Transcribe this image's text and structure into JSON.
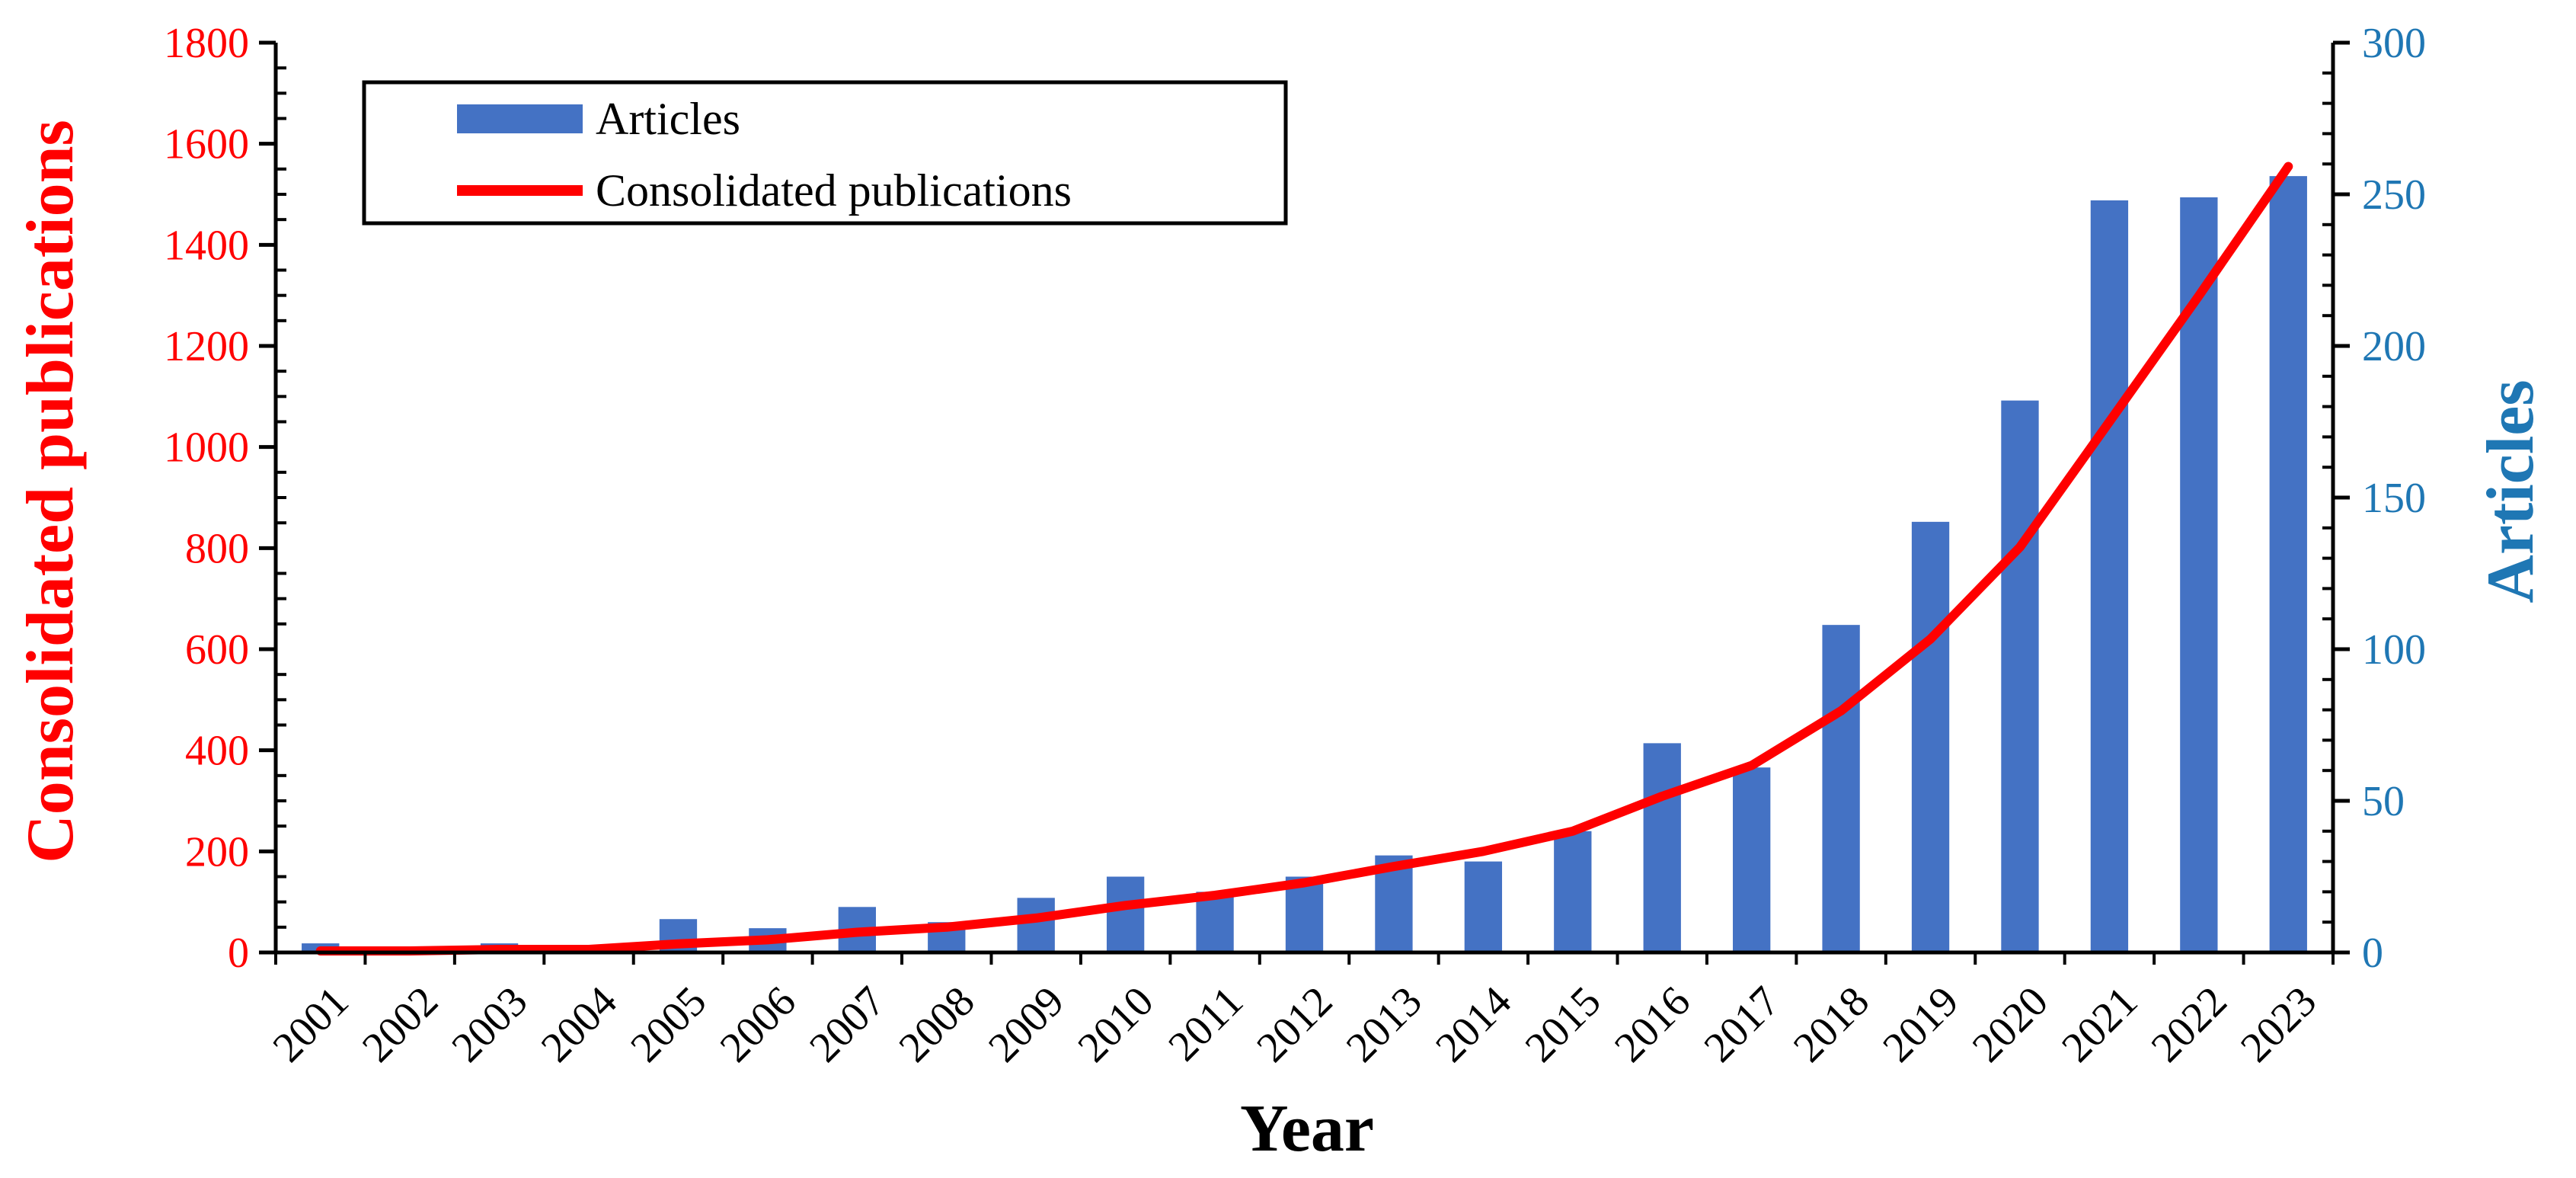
{
  "chart_data": {
    "type": "bar+line",
    "categories": [
      "2001",
      "2002",
      "2003",
      "2004",
      "2005",
      "2006",
      "2007",
      "2008",
      "2009",
      "2010",
      "2011",
      "2012",
      "2013",
      "2014",
      "2015",
      "2016",
      "2017",
      "2018",
      "2019",
      "2020",
      "2021",
      "2022",
      "2023"
    ],
    "series": [
      {
        "name": "Articles",
        "type": "bar",
        "axis": "right",
        "color": "#4472C4",
        "values": [
          3,
          0,
          3,
          0,
          11,
          8,
          15,
          10,
          18,
          25,
          20,
          25,
          32,
          30,
          40,
          69,
          61,
          108,
          142,
          182,
          248,
          249,
          256
        ]
      },
      {
        "name": "Consolidated publications",
        "type": "line",
        "axis": "left",
        "color": "#FF0000",
        "values": [
          3,
          3,
          6,
          6,
          17,
          25,
          40,
          50,
          68,
          93,
          113,
          138,
          170,
          200,
          240,
          309,
          370,
          478,
          620,
          802,
          1050,
          1299,
          1555
        ]
      }
    ],
    "xlabel": "Year",
    "ylabel_left": "Consolidated publications",
    "ylabel_right": "Articles",
    "ylim_left": [
      0,
      1800
    ],
    "ylim_right": [
      0,
      300
    ],
    "yticks_left": [
      "0",
      "200",
      "400",
      "600",
      "800",
      "1000",
      "1200",
      "1400",
      "1600",
      "1800"
    ],
    "yticks_right": [
      "0",
      "50",
      "100",
      "150",
      "200",
      "250",
      "300"
    ],
    "left_axis_color": "#FF0000",
    "right_axis_color": "#1F77B4",
    "legend": {
      "position": "top-left",
      "labels": [
        "Articles",
        "Consolidated publications"
      ]
    }
  }
}
